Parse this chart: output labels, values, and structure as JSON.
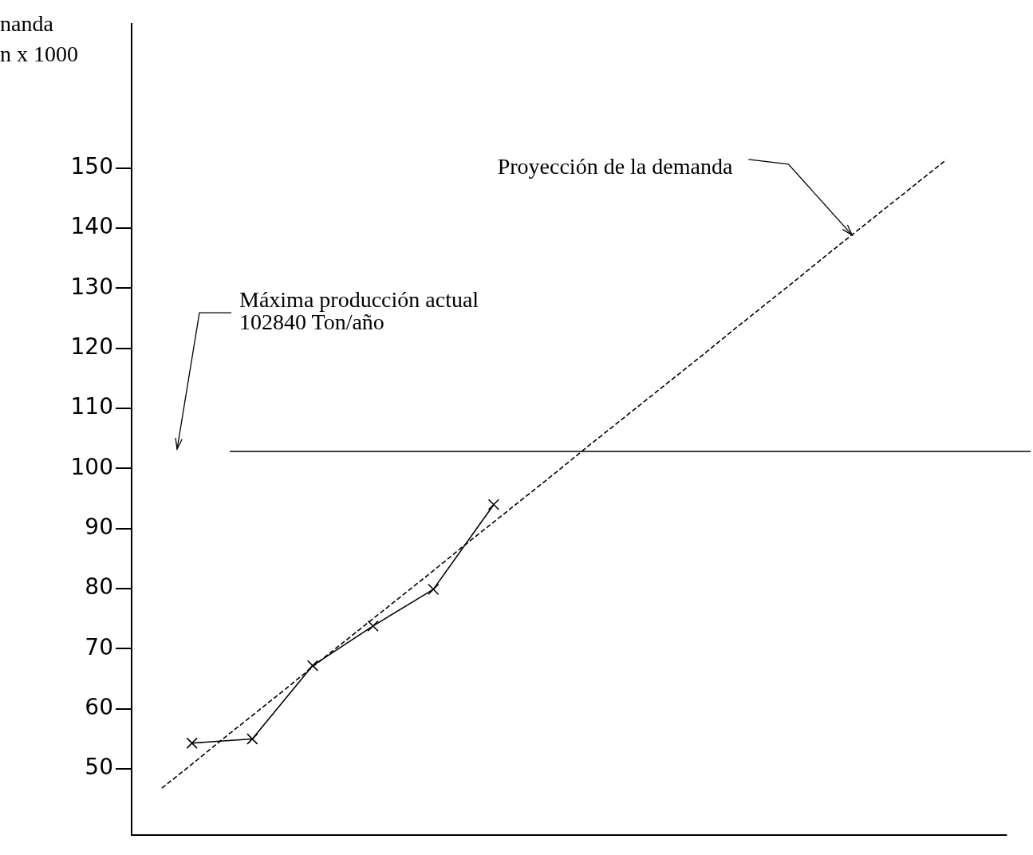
{
  "chart_data": {
    "type": "line",
    "ylabel": "nanda\nn x 1000",
    "categories": [
      null,
      null,
      null,
      null,
      null,
      null,
      null,
      null,
      null,
      null,
      null,
      null,
      null,
      null,
      null,
      null,
      null,
      null,
      null,
      null,
      null,
      null,
      null,
      null,
      null,
      null,
      null,
      null,
      null,
      null
    ],
    "ylim": [
      39,
      174
    ],
    "yticks": [
      50,
      60,
      70,
      80,
      90,
      100,
      110,
      120,
      130,
      140,
      150
    ],
    "tick_labels": "y",
    "grid": false,
    "legend": false,
    "series": [
      {
        "values": [
          null,
          null,
          54.3,
          null,
          55.0,
          null,
          67.2,
          null,
          73.8,
          null,
          79.9,
          null,
          94.0,
          null,
          null,
          null,
          null,
          null,
          null,
          null,
          null,
          null,
          null,
          null,
          null,
          null,
          null,
          null,
          null,
          null
        ],
        "color": "#000000",
        "marker": "cross",
        "line_style": "solid"
      },
      {
        "values": [
          null,
          46.8,
          50.8,
          54.9,
          58.9,
          62.9,
          67.0,
          71.0,
          75.0,
          79.0,
          83.0,
          87.1,
          91.1,
          95.1,
          99.1,
          103.2,
          107.2,
          111.2,
          115.2,
          119.2,
          123.3,
          127.3,
          131.3,
          135.4,
          139.4,
          143.4,
          147.4,
          151.4,
          null,
          null
        ],
        "color": "#000000",
        "marker": "none",
        "line_style": "dashed"
      }
    ],
    "ref_lines": [
      {
        "axis": "y",
        "value": 102.84,
        "label": "Máxima producción actual\n102840 Ton/año",
        "color": "#000000"
      }
    ],
    "annotations": [
      "Proyección de la demanda"
    ]
  }
}
